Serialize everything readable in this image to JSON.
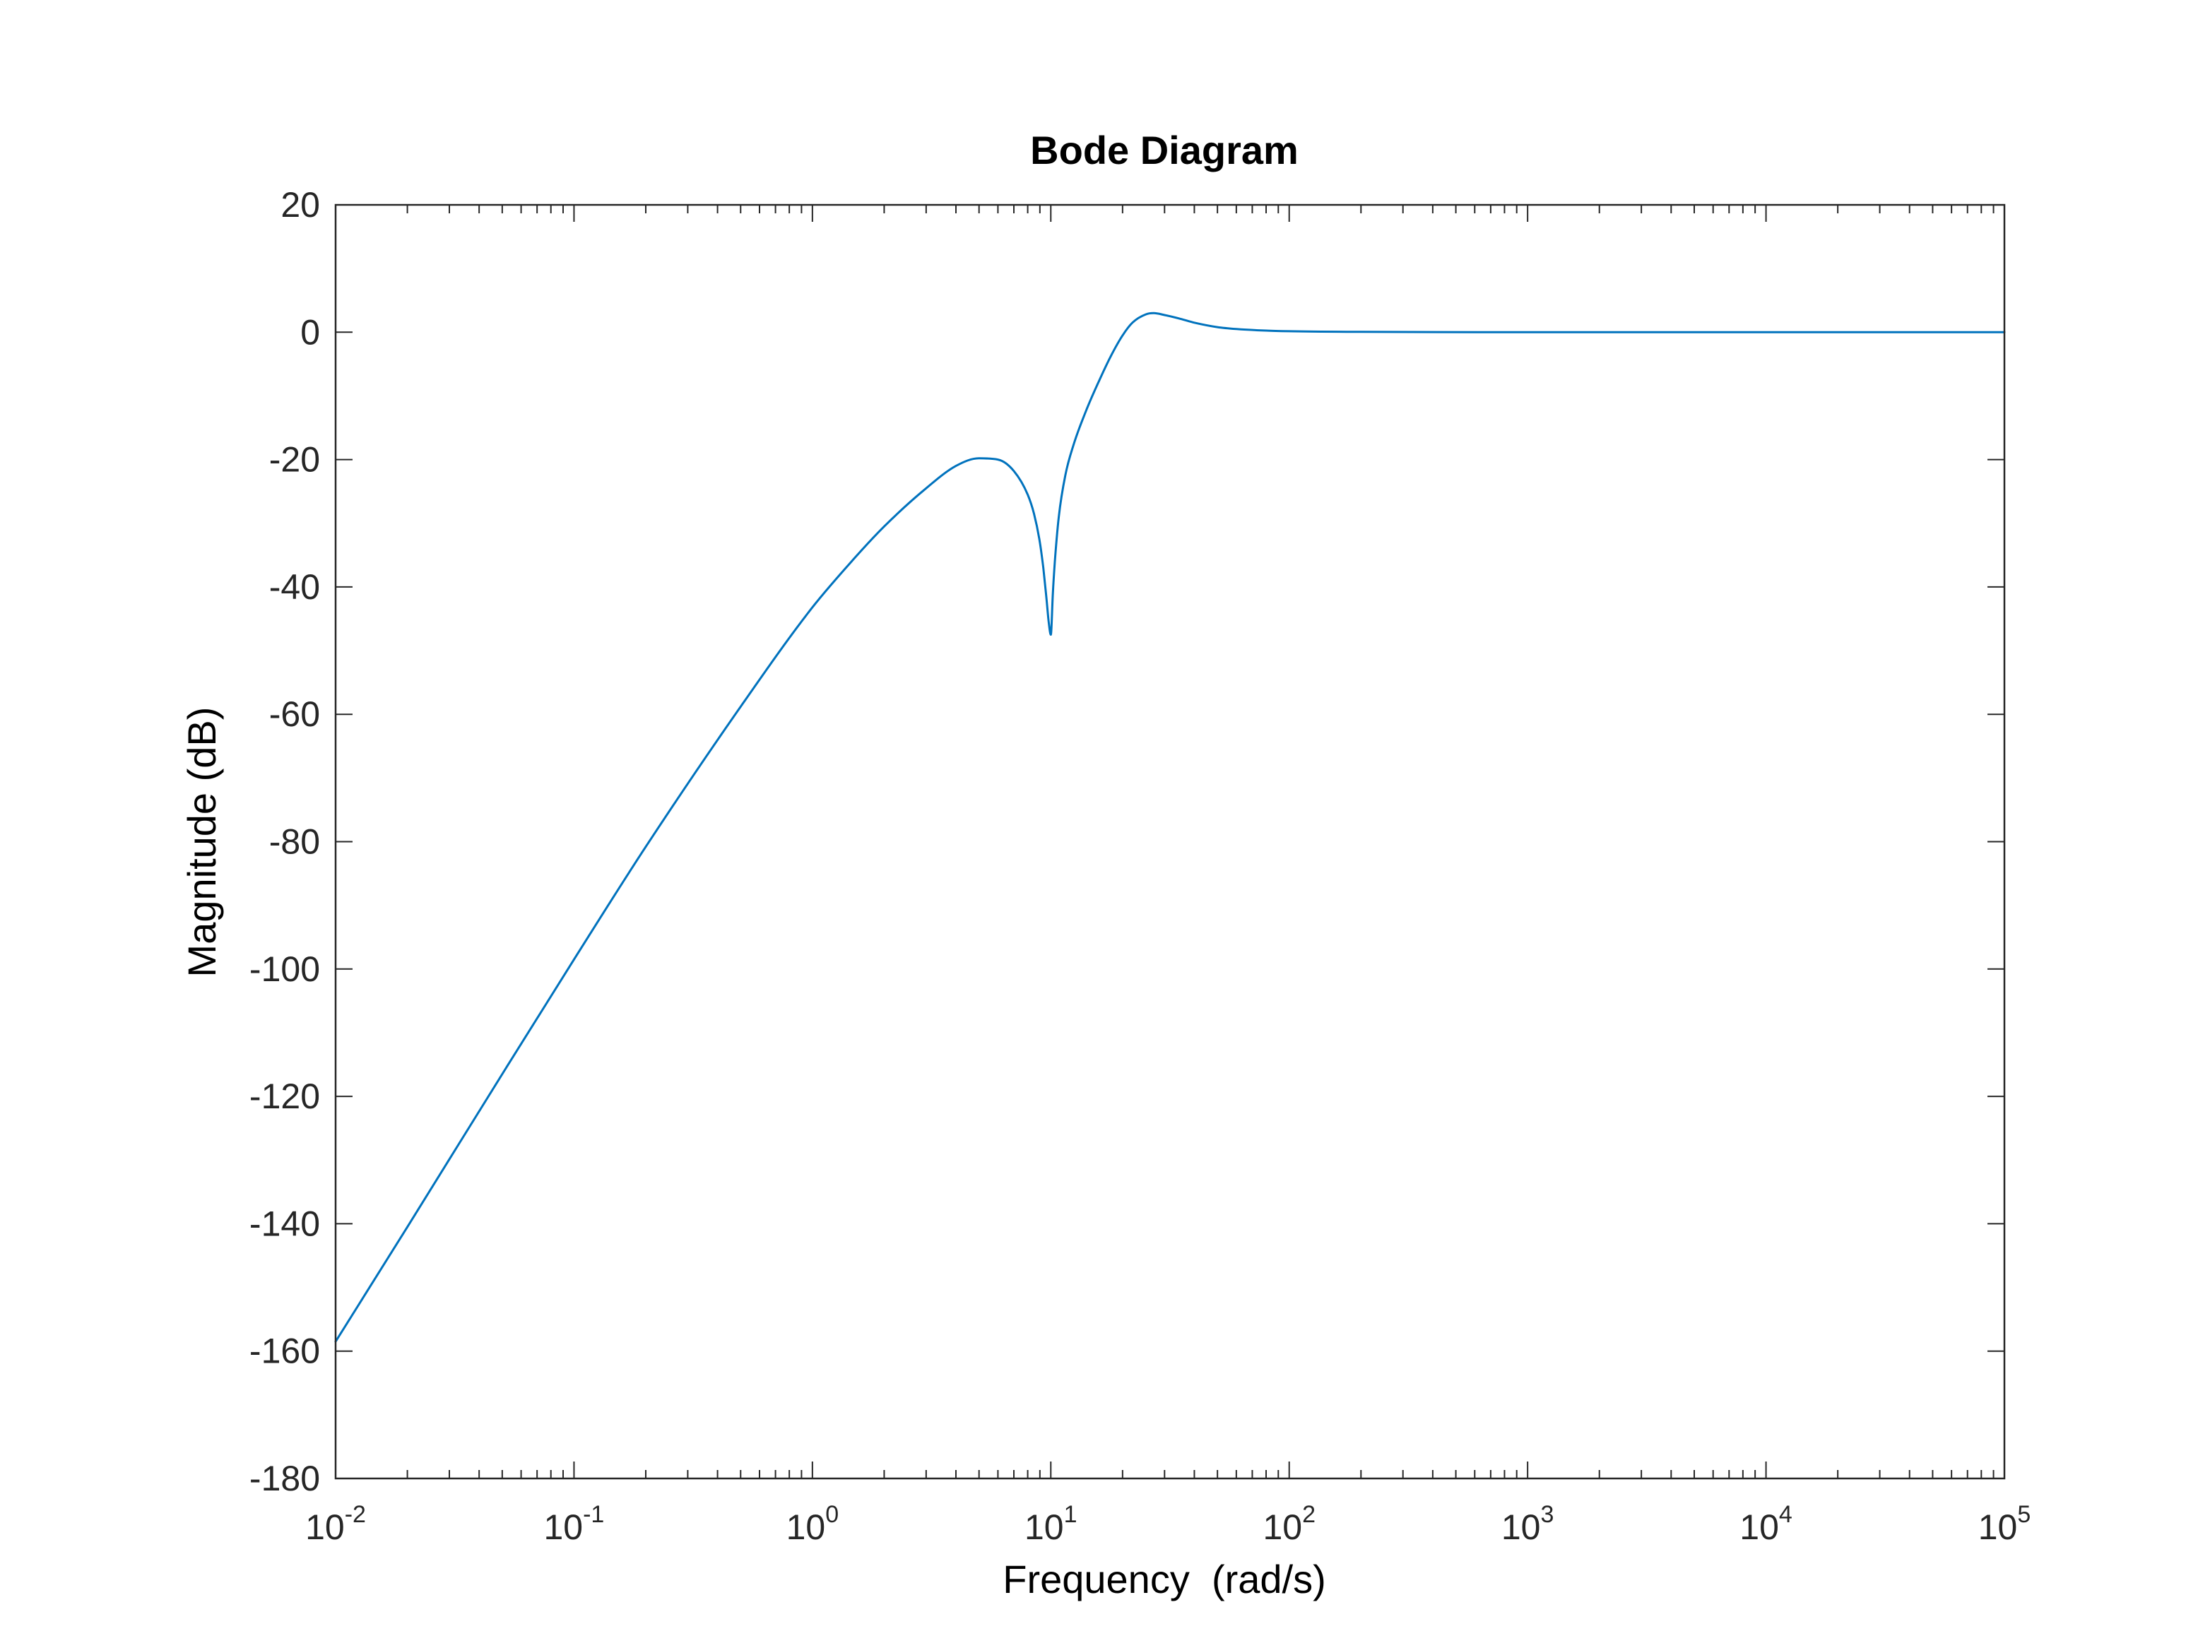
{
  "chart_data": {
    "type": "line",
    "title": "Bode Diagram",
    "xlabel": "Frequency  (rad/s)",
    "ylabel": "Magnitude (dB)",
    "xscale": "log",
    "xlim": [
      0.01,
      100000
    ],
    "ylim": [
      -180,
      20
    ],
    "grid": false,
    "legend": "none",
    "x_ticks": [
      {
        "value": 0.01,
        "base": "10",
        "exp": "-2"
      },
      {
        "value": 0.1,
        "base": "10",
        "exp": "-1"
      },
      {
        "value": 1,
        "base": "10",
        "exp": "0"
      },
      {
        "value": 10,
        "base": "10",
        "exp": "1"
      },
      {
        "value": 100,
        "base": "10",
        "exp": "2"
      },
      {
        "value": 1000,
        "base": "10",
        "exp": "3"
      },
      {
        "value": 10000,
        "base": "10",
        "exp": "4"
      },
      {
        "value": 100000,
        "base": "10",
        "exp": "5"
      }
    ],
    "y_ticks": [
      {
        "value": 20,
        "label": "20"
      },
      {
        "value": 0,
        "label": "0"
      },
      {
        "value": -20,
        "label": "-20"
      },
      {
        "value": -40,
        "label": "-40"
      },
      {
        "value": -60,
        "label": "-60"
      },
      {
        "value": -80,
        "label": "-80"
      },
      {
        "value": -100,
        "label": "-100"
      },
      {
        "value": -120,
        "label": "-120"
      },
      {
        "value": -140,
        "label": "-140"
      },
      {
        "value": -160,
        "label": "-160"
      },
      {
        "value": -180,
        "label": "-180"
      }
    ],
    "series": [
      {
        "color": "#0072bd",
        "x": [
          0.01,
          0.02,
          0.05,
          0.1,
          0.2,
          0.5,
          1,
          1.5,
          2,
          3,
          4,
          5,
          6,
          7,
          8,
          8.5,
          9,
          9.3,
          9.6,
          9.8,
          10,
          10.2,
          10.4,
          10.8,
          11.5,
          12.5,
          14,
          16,
          18,
          20,
          22,
          25,
          27,
          30,
          35,
          40,
          50,
          60,
          80,
          100,
          200,
          1000,
          10000,
          100000
        ],
        "y": [
          -158.5,
          -140.5,
          -116.5,
          -98.5,
          -80.8,
          -58.8,
          -43.2,
          -35.5,
          -30.5,
          -24.5,
          -21.0,
          -19.8,
          -20.0,
          -21.8,
          -25.5,
          -28.5,
          -33.0,
          -37.0,
          -42.0,
          -45.5,
          -47.5,
          -41.0,
          -36.0,
          -29.0,
          -22.5,
          -17.5,
          -12.5,
          -7.5,
          -3.5,
          -0.5,
          1.5,
          2.8,
          3.0,
          2.7,
          2.1,
          1.5,
          0.8,
          0.5,
          0.25,
          0.15,
          0.05,
          0.0,
          0.0,
          0.0
        ]
      }
    ]
  }
}
